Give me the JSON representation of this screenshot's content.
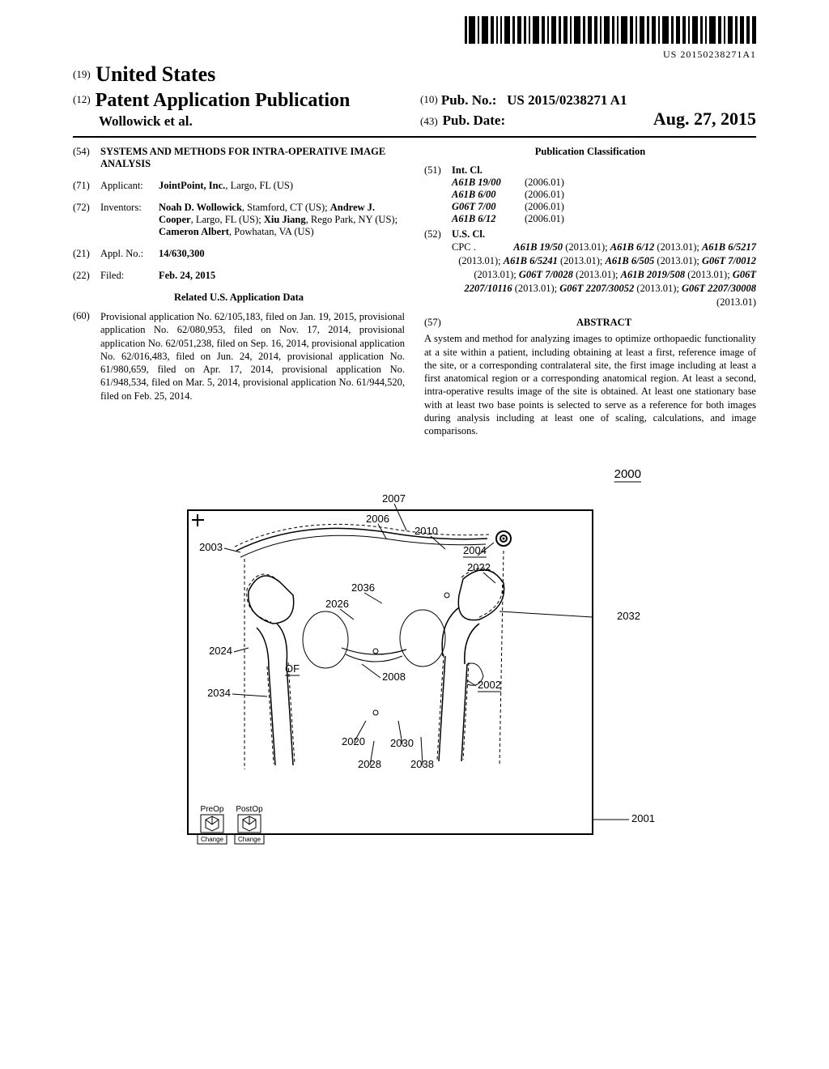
{
  "barcode_text": "US 20150238271A1",
  "country_code": "(19)",
  "country": "United States",
  "pub_type_code": "(12)",
  "pub_type": "Patent Application Publication",
  "authors_short": "Wollowick et al.",
  "pub_no_code": "(10)",
  "pub_no_label": "Pub. No.:",
  "pub_no": "US 2015/0238271 A1",
  "pub_date_code": "(43)",
  "pub_date_label": "Pub. Date:",
  "pub_date": "Aug. 27, 2015",
  "fields": {
    "title": {
      "code": "(54)",
      "value": "SYSTEMS AND METHODS FOR INTRA-OPERATIVE IMAGE ANALYSIS"
    },
    "applicant": {
      "code": "(71)",
      "label": "Applicant:",
      "value_html": "<b>JointPoint, Inc.</b>, Largo, FL (US)"
    },
    "inventors": {
      "code": "(72)",
      "label": "Inventors:",
      "value_html": "<b>Noah D. Wollowick</b>, Stamford, CT (US); <b>Andrew J. Cooper</b>, Largo, FL (US); <b>Xiu Jiang</b>, Rego Park, NY (US); <b>Cameron Albert</b>, Powhatan, VA (US)"
    },
    "appl_no": {
      "code": "(21)",
      "label": "Appl. No.:",
      "value_html": "<b>14/630,300</b>"
    },
    "filed": {
      "code": "(22)",
      "label": "Filed:",
      "value_html": "<b>Feb. 24, 2015</b>"
    }
  },
  "related_heading": "Related U.S. Application Data",
  "related": {
    "code": "(60)",
    "text": "Provisional application No. 62/105,183, filed on Jan. 19, 2015, provisional application No. 62/080,953, filed on Nov. 17, 2014, provisional application No. 62/051,238, filed on Sep. 16, 2014, provisional application No. 62/016,483, filed on Jun. 24, 2014, provisional application No. 61/980,659, filed on Apr. 17, 2014, provisional application No. 61/948,534, filed on Mar. 5, 2014, provisional application No. 61/944,520, filed on Feb. 25, 2014."
  },
  "classification_heading": "Publication Classification",
  "int_cl": {
    "code": "(51)",
    "label": "Int. Cl.",
    "items": [
      {
        "code": "A61B 19/00",
        "year": "(2006.01)"
      },
      {
        "code": "A61B 6/00",
        "year": "(2006.01)"
      },
      {
        "code": "G06T 7/00",
        "year": "(2006.01)"
      },
      {
        "code": "A61B 6/12",
        "year": "(2006.01)"
      }
    ]
  },
  "us_cl": {
    "code": "(52)",
    "label": "U.S. Cl.",
    "cpc_prefix": "CPC .",
    "cpc_html": "<span class='it'>A61B 19/50</span> (2013.01); <span class='it'>A61B 6/12</span> (2013.01); <span class='it'>A61B 6/5217</span> (2013.01); <span class='it'>A61B 6/5241</span> (2013.01); <span class='it'>A61B 6/505</span> (2013.01); <span class='it'>G06T 7/0012</span> (2013.01); <span class='it'>G06T 7/0028</span> (2013.01); <span class='it'>A61B 2019/508</span> (2013.01); <span class='it'>G06T 2207/10116</span> (2013.01); <span class='it'>G06T 2207/30052</span> (2013.01); <span class='it'>G06T 2207/30008</span> (2013.01)"
  },
  "abstract": {
    "code": "(57)",
    "title": "ABSTRACT",
    "text": "A system and method for analyzing images to optimize orthopaedic functionality at a site within a patient, including obtaining at least a first, reference image of the site, or a corresponding contralateral site, the first image including at least a first anatomical region or a corresponding anatomical region. At least a second, intra-operative results image of the site is obtained. At least one stationary base with at least two base points is selected to serve as a reference for both images during analysis including at least one of scaling, calculations, and image comparisons."
  },
  "figure": {
    "main_ref": "2000",
    "labels": {
      "n2001": "2001",
      "n2002": "2002",
      "n2003": "2003",
      "n2004": "2004",
      "n2006": "2006",
      "n2007": "2007",
      "n2008": "2008",
      "n2010": "2010",
      "n2020": "2020",
      "n2022": "2022",
      "n2024": "2024",
      "n2026": "2026",
      "n2028": "2028",
      "n2030": "2030",
      "n2032": "2032",
      "n2034": "2034",
      "n2036": "2036",
      "n2038": "2038",
      "OF": "OF"
    },
    "panel": {
      "preop": "PreOp",
      "postop": "PostOp",
      "change": "Change"
    },
    "stroke": "#000000",
    "dash": "4,3",
    "bg": "#ffffff",
    "label_font_size": 13
  }
}
